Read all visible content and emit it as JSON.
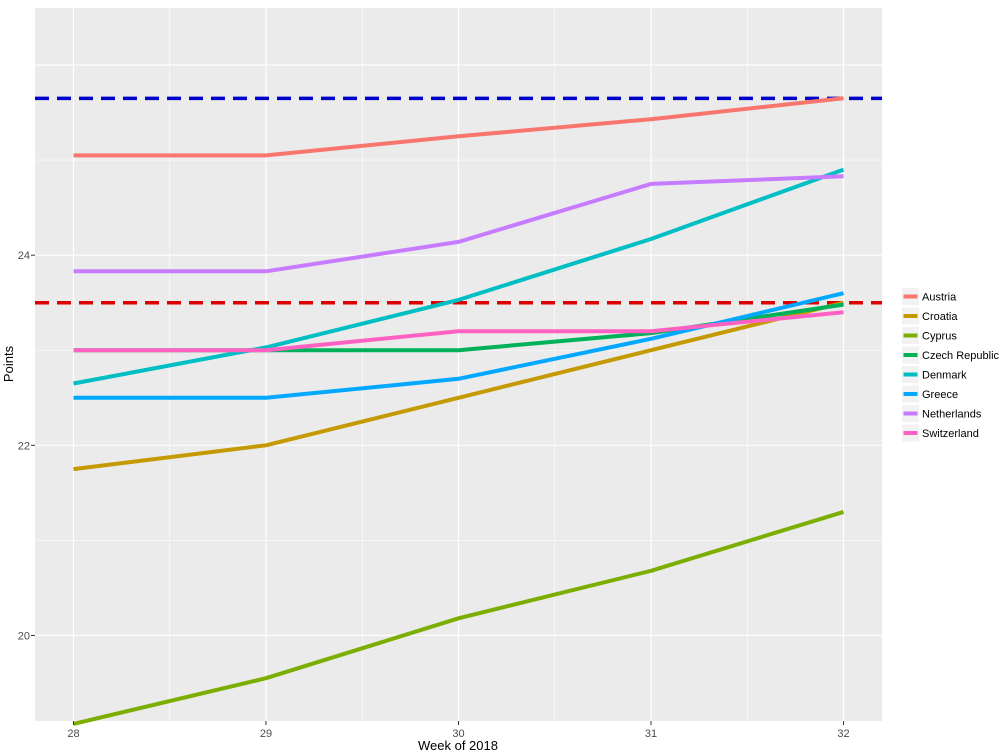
{
  "chart_data": {
    "type": "line",
    "xlabel": "Week of 2018",
    "ylabel": "Points",
    "x": [
      28,
      29,
      30,
      31,
      32
    ],
    "x_ticks": [
      "28",
      "29",
      "30",
      "31",
      "32"
    ],
    "y_ticks": [
      "20",
      "22",
      "24"
    ],
    "xlim": [
      27.8,
      32.2
    ],
    "ylim": [
      19.1,
      26.6
    ],
    "grid": true,
    "legend_position": "right",
    "background": "#ebebeb",
    "series": [
      {
        "name": "Austria",
        "color": "#f8766d",
        "values": [
          25.05,
          25.05,
          25.25,
          25.43,
          25.65
        ]
      },
      {
        "name": "Croatia",
        "color": "#c49a00",
        "values": [
          21.75,
          22.0,
          22.5,
          23.0,
          23.5
        ]
      },
      {
        "name": "Cyprus",
        "color": "#7cae00",
        "values": [
          19.07,
          19.55,
          20.18,
          20.68,
          21.3
        ]
      },
      {
        "name": "Czech Republic",
        "color": "#00b159",
        "values": [
          23.0,
          23.0,
          23.0,
          23.18,
          23.48
        ]
      },
      {
        "name": "Denmark",
        "color": "#00bfc4",
        "values": [
          22.65,
          23.03,
          23.53,
          24.17,
          24.9
        ]
      },
      {
        "name": "Greece",
        "color": "#00a9ff",
        "values": [
          22.5,
          22.5,
          22.7,
          23.12,
          23.6
        ]
      },
      {
        "name": "Netherlands",
        "color": "#c77cff",
        "values": [
          23.83,
          23.83,
          24.14,
          24.75,
          24.83
        ]
      },
      {
        "name": "Switzerland",
        "color": "#ff61c3",
        "values": [
          23.0,
          23.0,
          23.2,
          23.2,
          23.4
        ]
      }
    ],
    "reference_lines": [
      {
        "y": 25.65,
        "color": "#0000cc",
        "style": "dashed"
      },
      {
        "y": 23.5,
        "color": "#dd0000",
        "style": "dashed"
      }
    ]
  }
}
